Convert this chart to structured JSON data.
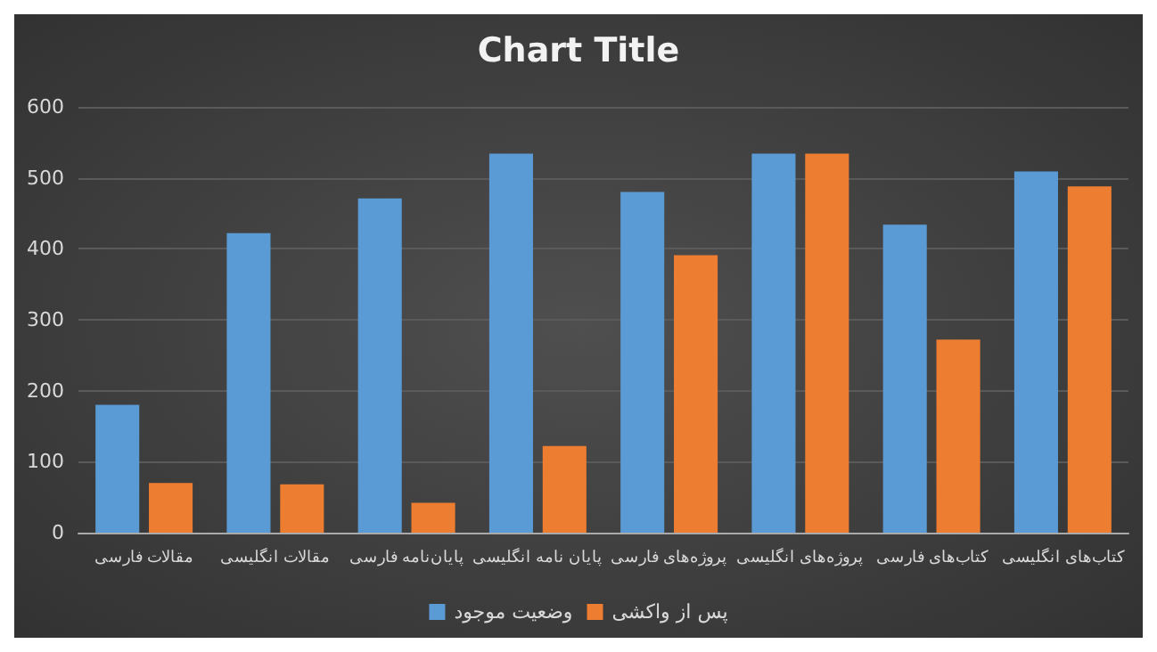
{
  "chart_data": {
    "type": "bar",
    "title": "Chart Title",
    "categories": [
      "مقالات فارسی",
      "مقالات انگلیسی",
      "پایان‌نامه فارسی",
      "پایان نامه انگلیسی",
      "پروژه‌های فارسی",
      "پروژه‌های انگلیسی",
      "کتاب‌های فارسی",
      "کتاب‌های انگلیسی"
    ],
    "series": [
      {
        "name": "وضعیت موجود",
        "color": "#5b9bd5",
        "values": [
          180,
          422,
          471,
          534,
          480,
          534,
          434,
          509
        ]
      },
      {
        "name": "پس از واکشی",
        "color": "#ed7d31",
        "values": [
          70,
          68,
          42,
          122,
          391,
          534,
          272,
          488
        ]
      }
    ],
    "ylim": [
      0,
      600
    ],
    "yticks": [
      0,
      100,
      200,
      300,
      400,
      500,
      600
    ],
    "grid": "y",
    "legend": "bottom"
  }
}
